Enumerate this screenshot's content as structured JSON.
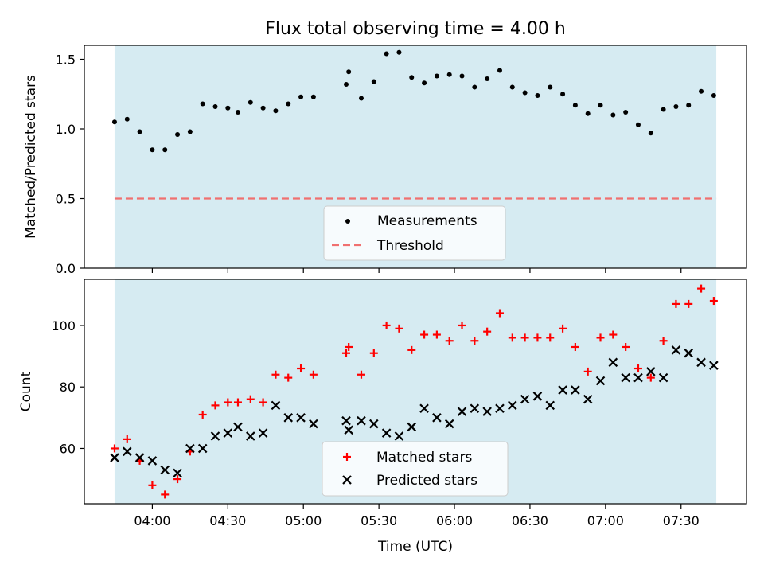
{
  "chart_data": [
    {
      "type": "scatter",
      "title": "Flux total observing time = 4.00 h",
      "ylabel": "Matched/Predicted stars",
      "xlabel": "",
      "xlim": [
        "03:33",
        "07:56"
      ],
      "ylim": [
        0,
        1.6
      ],
      "shaded_region": [
        "03:45",
        "07:44"
      ],
      "threshold": 0.5,
      "x_ticks": [
        "04:00",
        "04:30",
        "05:00",
        "05:30",
        "06:00",
        "06:30",
        "07:00",
        "07:30"
      ],
      "y_ticks": [
        "0.0",
        "0.5",
        "1.0",
        "1.5"
      ],
      "legend": {
        "placement": "lower-center",
        "entries": [
          "Measurements",
          "Threshold"
        ]
      },
      "series": [
        {
          "name": "Measurements",
          "x": [
            "03:45",
            "03:50",
            "03:55",
            "03:60",
            "04:05",
            "04:10",
            "04:15",
            "04:20",
            "04:25",
            "04:30",
            "04:34",
            "04:39",
            "04:44",
            "04:49",
            "04:54",
            "04:59",
            "05:04",
            "05:17",
            "05:18",
            "05:23",
            "05:28",
            "05:33",
            "05:38",
            "05:43",
            "05:48",
            "05:53",
            "05:58",
            "06:03",
            "06:08",
            "06:13",
            "06:18",
            "06:23",
            "06:28",
            "06:33",
            "06:38",
            "06:43",
            "06:48",
            "06:53",
            "06:58",
            "07:03",
            "07:08",
            "07:13",
            "07:18",
            "07:23",
            "07:28",
            "07:33",
            "07:38",
            "07:43"
          ],
          "y": [
            1.05,
            1.07,
            0.98,
            0.85,
            0.85,
            0.96,
            0.98,
            1.18,
            1.16,
            1.15,
            1.12,
            1.19,
            1.15,
            1.13,
            1.18,
            1.23,
            1.23,
            1.32,
            1.41,
            1.22,
            1.34,
            1.54,
            1.55,
            1.37,
            1.33,
            1.38,
            1.39,
            1.38,
            1.3,
            1.36,
            1.42,
            1.3,
            1.26,
            1.24,
            1.3,
            1.25,
            1.17,
            1.11,
            1.17,
            1.1,
            1.12,
            1.03,
            0.97,
            1.14,
            1.16,
            1.17,
            1.27,
            1.24
          ]
        },
        {
          "name": "Threshold",
          "x": [
            "03:45",
            "07:44"
          ],
          "y": [
            0.5,
            0.5
          ]
        }
      ]
    },
    {
      "type": "scatter",
      "title": "",
      "ylabel": "Count",
      "xlabel": "Time (UTC)",
      "xlim": [
        "03:33",
        "07:56"
      ],
      "ylim": [
        42,
        115
      ],
      "shaded_region": [
        "03:45",
        "07:44"
      ],
      "x_ticks": [
        "04:00",
        "04:30",
        "05:00",
        "05:30",
        "06:00",
        "06:30",
        "07:00",
        "07:30"
      ],
      "y_ticks": [
        "60",
        "80",
        "100"
      ],
      "legend": {
        "placement": "lower-center",
        "entries": [
          "Matched stars",
          "Predicted stars"
        ]
      },
      "series": [
        {
          "name": "Matched stars",
          "x": [
            "03:45",
            "03:50",
            "03:55",
            "03:60",
            "04:05",
            "04:10",
            "04:15",
            "04:20",
            "04:25",
            "04:30",
            "04:34",
            "04:39",
            "04:44",
            "04:49",
            "04:54",
            "04:59",
            "05:04",
            "05:17",
            "05:18",
            "05:23",
            "05:28",
            "05:33",
            "05:38",
            "05:43",
            "05:48",
            "05:53",
            "05:58",
            "06:03",
            "06:08",
            "06:13",
            "06:18",
            "06:23",
            "06:28",
            "06:33",
            "06:38",
            "06:43",
            "06:48",
            "06:53",
            "06:58",
            "07:03",
            "07:08",
            "07:13",
            "07:18",
            "07:23",
            "07:28",
            "07:33",
            "07:38",
            "07:43"
          ],
          "y": [
            60,
            63,
            56,
            48,
            45,
            50,
            59,
            71,
            74,
            75,
            75,
            76,
            75,
            84,
            83,
            86,
            84,
            91,
            93,
            84,
            91,
            100,
            99,
            92,
            97,
            97,
            95,
            100,
            95,
            98,
            104,
            96,
            96,
            96,
            96,
            99,
            93,
            85,
            96,
            97,
            93,
            86,
            83,
            95,
            107,
            107,
            112,
            108
          ]
        },
        {
          "name": "Predicted stars",
          "x": [
            "03:45",
            "03:50",
            "03:55",
            "03:60",
            "04:05",
            "04:10",
            "04:15",
            "04:20",
            "04:25",
            "04:30",
            "04:34",
            "04:39",
            "04:44",
            "04:49",
            "04:54",
            "04:59",
            "05:04",
            "05:17",
            "05:18",
            "05:23",
            "05:28",
            "05:33",
            "05:38",
            "05:43",
            "05:48",
            "05:53",
            "05:58",
            "06:03",
            "06:08",
            "06:13",
            "06:18",
            "06:23",
            "06:28",
            "06:33",
            "06:38",
            "06:43",
            "06:48",
            "06:53",
            "06:58",
            "07:03",
            "07:08",
            "07:13",
            "07:18",
            "07:23",
            "07:28",
            "07:33",
            "07:38",
            "07:43"
          ],
          "y": [
            57,
            59,
            57,
            56,
            53,
            52,
            60,
            60,
            64,
            65,
            67,
            64,
            65,
            74,
            70,
            70,
            68,
            69,
            66,
            69,
            68,
            65,
            64,
            67,
            73,
            70,
            68,
            72,
            73,
            72,
            73,
            74,
            76,
            77,
            74,
            79,
            79,
            76,
            82,
            88,
            83,
            83,
            85,
            83,
            92,
            91,
            88,
            87
          ]
        }
      ]
    }
  ]
}
